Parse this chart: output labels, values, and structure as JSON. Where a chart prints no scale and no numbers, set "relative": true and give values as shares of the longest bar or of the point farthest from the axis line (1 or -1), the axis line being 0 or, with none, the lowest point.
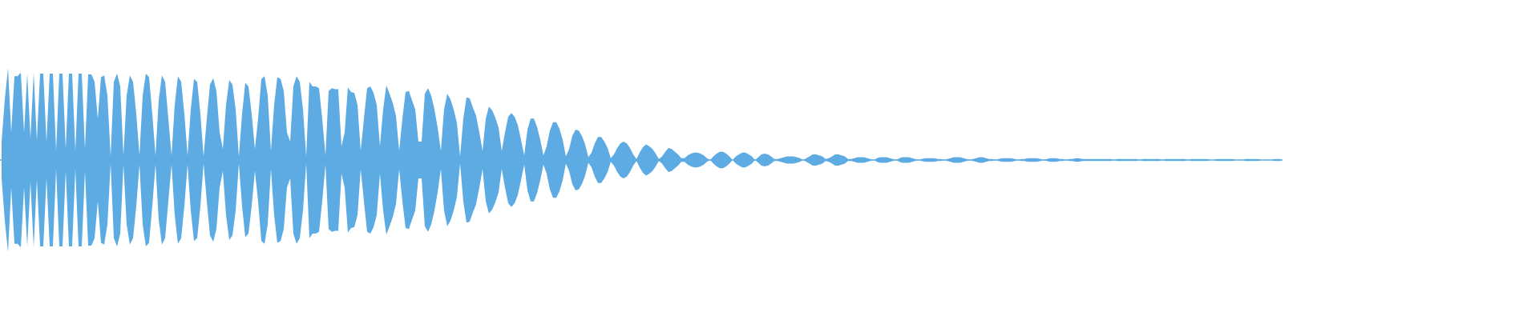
{
  "chart_data": {
    "type": "area",
    "relative": true,
    "ref_lines": [
      {
        "axis": "y",
        "value": 0,
        "color": "#5dabe2"
      }
    ],
    "categories": [
      null,
      null,
      null,
      null,
      null,
      null,
      null,
      null,
      null,
      null,
      null,
      null,
      null,
      null,
      null,
      null,
      null,
      null,
      null,
      null,
      null,
      null,
      null,
      null,
      null,
      null,
      null,
      null,
      null,
      null,
      null,
      null,
      null,
      null,
      null,
      null,
      null,
      null,
      null,
      null,
      null,
      null,
      null,
      null,
      null,
      null,
      null,
      null,
      null,
      null,
      null,
      null,
      null,
      null,
      null,
      null,
      null,
      null,
      null,
      null,
      null,
      null,
      null,
      null,
      null,
      null,
      null,
      null,
      null,
      null,
      null,
      null,
      null,
      null,
      null,
      null,
      null,
      null,
      null,
      null,
      null,
      null,
      null,
      null,
      null,
      null,
      null,
      null,
      null,
      null,
      null,
      null,
      null,
      null,
      null,
      null,
      null,
      null,
      null,
      null,
      null,
      null,
      null,
      null,
      null,
      null,
      null,
      null,
      null,
      null,
      null,
      null,
      null,
      null,
      null,
      null,
      null,
      null,
      null,
      null,
      null,
      null,
      null,
      null,
      null,
      null,
      null,
      null,
      null,
      null,
      null,
      null,
      null,
      null,
      null,
      null,
      null,
      null,
      null,
      null,
      null,
      null,
      null,
      null,
      null,
      null,
      null,
      null,
      null,
      null,
      null,
      null,
      null,
      null,
      null,
      null,
      null,
      null,
      null,
      null,
      null,
      null,
      null,
      null,
      null,
      null,
      null,
      null,
      null,
      null,
      null,
      null,
      null,
      null,
      null,
      null,
      null,
      null,
      null,
      null,
      null,
      null,
      null,
      null,
      null,
      null,
      null,
      null,
      null,
      null,
      null,
      null,
      null,
      null,
      null,
      null,
      null,
      null,
      null,
      null,
      null,
      null,
      null,
      null,
      null,
      null,
      null,
      null,
      null,
      null,
      null,
      null,
      null,
      null,
      null,
      null,
      null,
      null,
      null,
      null,
      null,
      null,
      null,
      null,
      null,
      null,
      null,
      null,
      null,
      null,
      null,
      null,
      null,
      null,
      null,
      null,
      null,
      null,
      null,
      null,
      null,
      null,
      null,
      null,
      null,
      null,
      null,
      null,
      null,
      null,
      null,
      null,
      null,
      null,
      null,
      null,
      null,
      null,
      null,
      null,
      null,
      null,
      null,
      null,
      null,
      null,
      null,
      null,
      null,
      null,
      null,
      null,
      null,
      null,
      null,
      null,
      null,
      null,
      null,
      null,
      null,
      null,
      null,
      null,
      null,
      null,
      null,
      null,
      null,
      null,
      null,
      null,
      null,
      null,
      null,
      null,
      null,
      null,
      null,
      null,
      null,
      null,
      null,
      null,
      null,
      null,
      null,
      null,
      null,
      null,
      null,
      null,
      null,
      null,
      null,
      null,
      null,
      null,
      null,
      null,
      null,
      null,
      null,
      null,
      null,
      null,
      null,
      null,
      null,
      null,
      null,
      null,
      null,
      null,
      null,
      null,
      null,
      null,
      null,
      null,
      null,
      null,
      null,
      null,
      null,
      null,
      null,
      null,
      null,
      null,
      null,
      null,
      null,
      null,
      null,
      null,
      null,
      null,
      null,
      null,
      null,
      null,
      null,
      null,
      null,
      null,
      null,
      null,
      null,
      null,
      null,
      null,
      null,
      null,
      null,
      null,
      null,
      null,
      null,
      null,
      null,
      null,
      null,
      null,
      null,
      null,
      null,
      null,
      null,
      null,
      null,
      null,
      null,
      null,
      null,
      null,
      null,
      null,
      null,
      null
    ],
    "series": [
      {
        "color": "#5dabe2",
        "values": [
          0.2,
          0.66,
          1,
          0.3,
          0.91,
          0.91,
          0.95,
          0.3,
          0.94,
          0.24,
          0.95,
          0.21,
          0.94,
          0.94,
          0.2,
          0.94,
          0.94,
          0.1,
          0.94,
          0.94,
          0.12,
          0.94,
          0.94,
          0.1,
          0.94,
          0.94,
          0.12,
          0.93,
          0.93,
          0.85,
          0.45,
          0.9,
          0.92,
          0.7,
          0.04,
          0.85,
          0.94,
          0.8,
          0.05,
          0.7,
          0.92,
          0.85,
          0.5,
          0.05,
          0.7,
          0.94,
          0.9,
          0.5,
          0.05,
          0.65,
          0.92,
          0.85,
          0.45,
          0.05,
          0.6,
          0.91,
          0.85,
          0.5,
          0.05,
          0.55,
          0.88,
          0.85,
          0.5,
          0.04,
          0.45,
          0.82,
          0.89,
          0.75,
          0.3,
          0.12,
          0.6,
          0.87,
          0.82,
          0.55,
          0.04,
          0.5,
          0.84,
          0.8,
          0.5,
          0.12,
          0.45,
          0.88,
          0.91,
          0.7,
          0.1,
          0.6,
          0.9,
          0.88,
          0.75,
          0.3,
          0.2,
          0.8,
          0.91,
          0.85,
          0.55,
          0.04,
          0.85,
          0.8,
          0.8,
          0.78,
          0.45,
          0.05,
          0.75,
          0.78,
          0.77,
          0.77,
          0.15,
          0.3,
          0.79,
          0.74,
          0.73,
          0.6,
          0.1,
          0.45,
          0.78,
          0.8,
          0.73,
          0.6,
          0.15,
          0.55,
          0.81,
          0.72,
          0.62,
          0.48,
          0.1,
          0.45,
          0.74,
          0.75,
          0.65,
          0.55,
          0.2,
          0.2,
          0.72,
          0.78,
          0.7,
          0.55,
          0.35,
          0.1,
          0.55,
          0.72,
          0.66,
          0.55,
          0.4,
          0.04,
          0.45,
          0.68,
          0.67,
          0.57,
          0.48,
          0.3,
          0.1,
          0.45,
          0.58,
          0.54,
          0.46,
          0.35,
          0.1,
          0.3,
          0.47,
          0.51,
          0.47,
          0.38,
          0.22,
          0.05,
          0.33,
          0.45,
          0.45,
          0.36,
          0.22,
          0.05,
          0.15,
          0.32,
          0.41,
          0.41,
          0.34,
          0.22,
          0.04,
          0.12,
          0.26,
          0.33,
          0.32,
          0.26,
          0.17,
          0.03,
          0.08,
          0.18,
          0.25,
          0.25,
          0.2,
          0.13,
          0.02,
          0.06,
          0.13,
          0.18,
          0.2,
          0.18,
          0.13,
          0.06,
          0.01,
          0.08,
          0.14,
          0.17,
          0.15,
          0.12,
          0.07,
          0.01,
          0.04,
          0.09,
          0.13,
          0.12,
          0.09,
          0.06,
          0.02,
          0.02,
          0.05,
          0.07,
          0.08,
          0.08,
          0.07,
          0.05,
          0.02,
          0,
          0.04,
          0.07,
          0.09,
          0.09,
          0.07,
          0.04,
          0,
          0.04,
          0.06,
          0.08,
          0.08,
          0.06,
          0.04,
          0,
          0.03,
          0.06,
          0.07,
          0.06,
          0.04,
          0.01,
          0.01,
          0.02,
          0.03,
          0.04,
          0.04,
          0.04,
          0.03,
          0.02,
          0,
          0.02,
          0.04,
          0.06,
          0.06,
          0.05,
          0.04,
          0.01,
          0.02,
          0.04,
          0.06,
          0.06,
          0.05,
          0.04,
          0.01,
          0.01,
          0.02,
          0.03,
          0.03,
          0.03,
          0.02,
          0.01,
          0,
          0.02,
          0.03,
          0.03,
          0.03,
          0.02,
          0.01,
          0,
          0.02,
          0.03,
          0.03,
          0.03,
          0.02,
          0.01,
          0,
          0.01,
          0.02,
          0.02,
          0.02,
          0.02,
          0.01,
          0.01,
          0,
          0.01,
          0.02,
          0.03,
          0.03,
          0.03,
          0.02,
          0.01,
          0,
          0.01,
          0.02,
          0.03,
          0.03,
          0.02,
          0.01,
          0.01,
          0,
          0.01,
          0.02,
          0.02,
          0.02,
          0.02,
          0.01,
          0,
          0.01,
          0.01,
          0.02,
          0.02,
          0.02,
          0.02,
          0.01,
          0,
          0.01,
          0.02,
          0.02,
          0.02,
          0.01,
          0.01,
          0,
          0.01,
          0.01,
          0.02,
          0.02,
          0.01,
          0.01,
          0.01,
          0.01,
          0.01,
          0.01,
          0.01,
          0.01,
          0.01,
          0.01,
          0,
          0.01,
          0.01,
          0.01,
          0.01,
          0.01,
          0.01,
          0.01,
          0,
          0.01,
          0.01,
          0.01,
          0.01,
          0.01,
          0.01,
          0,
          0.01,
          0.01,
          0.01,
          0.01,
          0.01,
          0.01,
          0.01,
          0,
          0.01,
          0.01,
          0.01,
          0.01,
          0.01,
          0.01,
          0,
          0,
          0.01,
          0.01,
          0.01,
          0.01,
          0.01,
          0.01,
          0,
          0,
          0,
          0.01,
          0.01,
          0.01,
          0.01,
          0.01,
          0,
          0,
          0,
          0,
          0.01,
          0.01,
          0.01
        ]
      },
      {
        "color": "#5dabe3",
        "values": [
          -0.2,
          -0.66,
          -1,
          -0.3,
          -0.91,
          -0.91,
          -0.95,
          -0.3,
          -0.94,
          -0.24,
          -0.95,
          -0.21,
          -0.94,
          -0.94,
          -0.2,
          -0.94,
          -0.94,
          -0.1,
          -0.94,
          -0.94,
          -0.12,
          -0.94,
          -0.94,
          -0.1,
          -0.94,
          -0.94,
          -0.12,
          -0.93,
          -0.93,
          -0.85,
          -0.45,
          -0.9,
          -0.92,
          -0.7,
          -0.04,
          -0.85,
          -0.94,
          -0.8,
          -0.05,
          -0.7,
          -0.92,
          -0.85,
          -0.5,
          -0.05,
          -0.7,
          -0.94,
          -0.9,
          -0.5,
          -0.05,
          -0.65,
          -0.92,
          -0.85,
          -0.45,
          -0.05,
          -0.6,
          -0.91,
          -0.85,
          -0.5,
          -0.05,
          -0.55,
          -0.88,
          -0.85,
          -0.5,
          -0.04,
          -0.45,
          -0.82,
          -0.89,
          -0.75,
          -0.3,
          -0.12,
          -0.6,
          -0.87,
          -0.82,
          -0.55,
          -0.04,
          -0.5,
          -0.84,
          -0.8,
          -0.5,
          -0.12,
          -0.45,
          -0.88,
          -0.91,
          -0.7,
          -0.1,
          -0.6,
          -0.9,
          -0.88,
          -0.75,
          -0.3,
          -0.2,
          -0.8,
          -0.91,
          -0.85,
          -0.55,
          -0.04,
          -0.85,
          -0.8,
          -0.8,
          -0.78,
          -0.45,
          -0.05,
          -0.75,
          -0.78,
          -0.77,
          -0.77,
          -0.15,
          -0.3,
          -0.79,
          -0.74,
          -0.73,
          -0.6,
          -0.1,
          -0.45,
          -0.78,
          -0.8,
          -0.73,
          -0.6,
          -0.15,
          -0.55,
          -0.81,
          -0.72,
          -0.62,
          -0.48,
          -0.1,
          -0.45,
          -0.74,
          -0.75,
          -0.65,
          -0.55,
          -0.2,
          -0.2,
          -0.72,
          -0.78,
          -0.7,
          -0.55,
          -0.35,
          -0.1,
          -0.55,
          -0.72,
          -0.66,
          -0.55,
          -0.4,
          -0.04,
          -0.45,
          -0.68,
          -0.67,
          -0.57,
          -0.48,
          -0.3,
          -0.1,
          -0.45,
          -0.58,
          -0.54,
          -0.46,
          -0.35,
          -0.1,
          -0.3,
          -0.47,
          -0.51,
          -0.47,
          -0.38,
          -0.22,
          -0.05,
          -0.33,
          -0.45,
          -0.45,
          -0.36,
          -0.22,
          -0.05,
          -0.15,
          -0.32,
          -0.41,
          -0.41,
          -0.34,
          -0.22,
          -0.04,
          -0.12,
          -0.26,
          -0.33,
          -0.32,
          -0.26,
          -0.17,
          -0.03,
          -0.08,
          -0.18,
          -0.25,
          -0.25,
          -0.2,
          -0.13,
          -0.02,
          -0.06,
          -0.13,
          -0.18,
          -0.2,
          -0.18,
          -0.13,
          -0.06,
          -0.01,
          -0.08,
          -0.14,
          -0.17,
          -0.15,
          -0.12,
          -0.07,
          -0.01,
          -0.04,
          -0.09,
          -0.13,
          -0.12,
          -0.09,
          -0.06,
          -0.02,
          -0.02,
          -0.05,
          -0.07,
          -0.08,
          -0.08,
          -0.07,
          -0.05,
          -0.02,
          0,
          -0.04,
          -0.07,
          -0.09,
          -0.09,
          -0.07,
          -0.04,
          0,
          -0.04,
          -0.06,
          -0.08,
          -0.08,
          -0.06,
          -0.04,
          0,
          -0.03,
          -0.06,
          -0.07,
          -0.06,
          -0.04,
          -0.01,
          -0.01,
          -0.02,
          -0.03,
          -0.04,
          -0.04,
          -0.04,
          -0.03,
          -0.02,
          0,
          -0.02,
          -0.04,
          -0.06,
          -0.06,
          -0.05,
          -0.04,
          -0.01,
          -0.02,
          -0.04,
          -0.06,
          -0.06,
          -0.05,
          -0.04,
          -0.01,
          -0.01,
          -0.02,
          -0.03,
          -0.03,
          -0.03,
          -0.02,
          -0.01,
          0,
          -0.02,
          -0.03,
          -0.03,
          -0.03,
          -0.02,
          -0.01,
          0,
          -0.02,
          -0.03,
          -0.03,
          -0.03,
          -0.02,
          -0.01,
          0,
          -0.01,
          -0.02,
          -0.02,
          -0.02,
          -0.02,
          -0.01,
          -0.01,
          0,
          -0.01,
          -0.02,
          -0.03,
          -0.03,
          -0.03,
          -0.02,
          -0.01,
          0,
          -0.01,
          -0.02,
          -0.03,
          -0.03,
          -0.02,
          -0.01,
          -0.01,
          0,
          -0.01,
          -0.02,
          -0.02,
          -0.02,
          -0.02,
          -0.01,
          0,
          -0.01,
          -0.01,
          -0.02,
          -0.02,
          -0.02,
          -0.02,
          -0.01,
          0,
          -0.01,
          -0.02,
          -0.02,
          -0.02,
          -0.01,
          -0.01,
          0,
          -0.01,
          -0.01,
          -0.02,
          -0.02,
          -0.01,
          -0.01,
          -0.01,
          -0.01,
          -0.01,
          -0.01,
          -0.01,
          -0.01,
          -0.01,
          -0.01,
          0,
          -0.01,
          -0.01,
          -0.01,
          -0.01,
          -0.01,
          -0.01,
          -0.01,
          0,
          -0.01,
          -0.01,
          -0.01,
          -0.01,
          -0.01,
          -0.01,
          0,
          -0.01,
          -0.01,
          -0.01,
          -0.01,
          -0.01,
          -0.01,
          -0.01,
          0,
          -0.01,
          -0.01,
          -0.01,
          -0.01,
          -0.01,
          -0.01,
          0,
          0,
          -0.01,
          -0.01,
          -0.01,
          -0.01,
          -0.01,
          -0.01,
          0,
          0,
          0,
          -0.01,
          -0.01,
          -0.01,
          -0.01,
          -0.01,
          0,
          0,
          0,
          0,
          -0.01,
          -0.01,
          -0.01
        ]
      }
    ]
  }
}
